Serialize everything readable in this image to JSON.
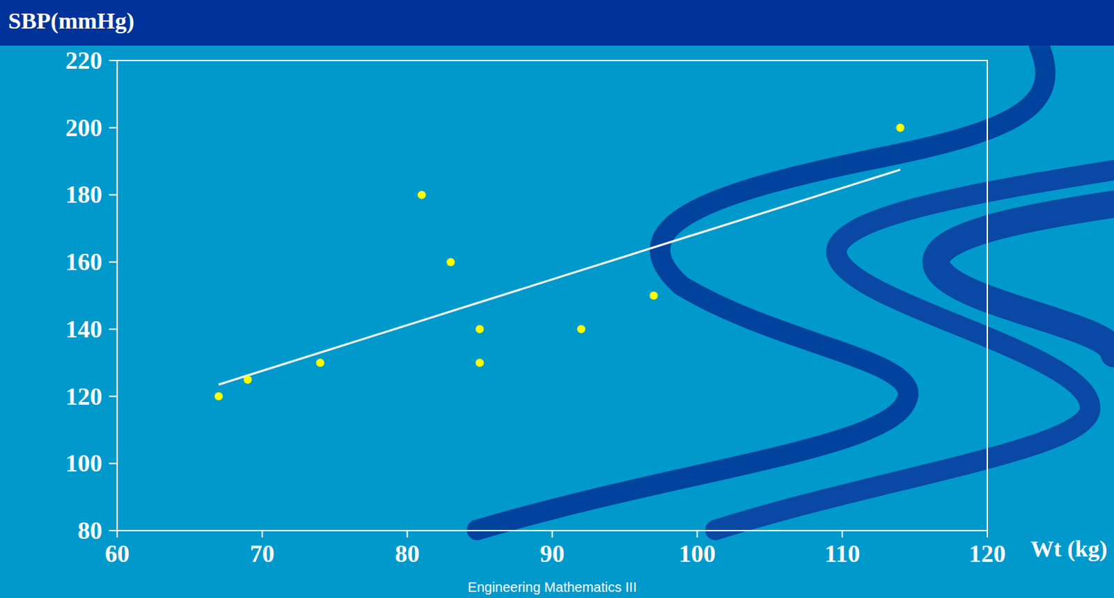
{
  "chart_data": {
    "type": "scatter",
    "y_label": "SBP(mmHg)",
    "x_label": "Wt (kg)",
    "footer": "Engineering Mathematics III",
    "xlim": [
      60,
      120
    ],
    "xticks": [
      60,
      70,
      80,
      90,
      100,
      110,
      120
    ],
    "ylim": [
      80,
      220
    ],
    "yticks": [
      80,
      100,
      120,
      140,
      160,
      180,
      200,
      220
    ],
    "grid": false,
    "series": [
      {
        "type": "scatter",
        "marker": "circle",
        "color": "#ffff00",
        "x": [
          67,
          69,
          74,
          81,
          83,
          85,
          85,
          92,
          97,
          114
        ],
        "values": [
          120,
          125,
          130,
          180,
          160,
          140,
          130,
          140,
          150,
          200
        ]
      },
      {
        "type": "line",
        "line_style": "solid",
        "color": "#ffffff",
        "x": [
          67,
          114
        ],
        "values": [
          123.5,
          187.5
        ]
      }
    ]
  }
}
